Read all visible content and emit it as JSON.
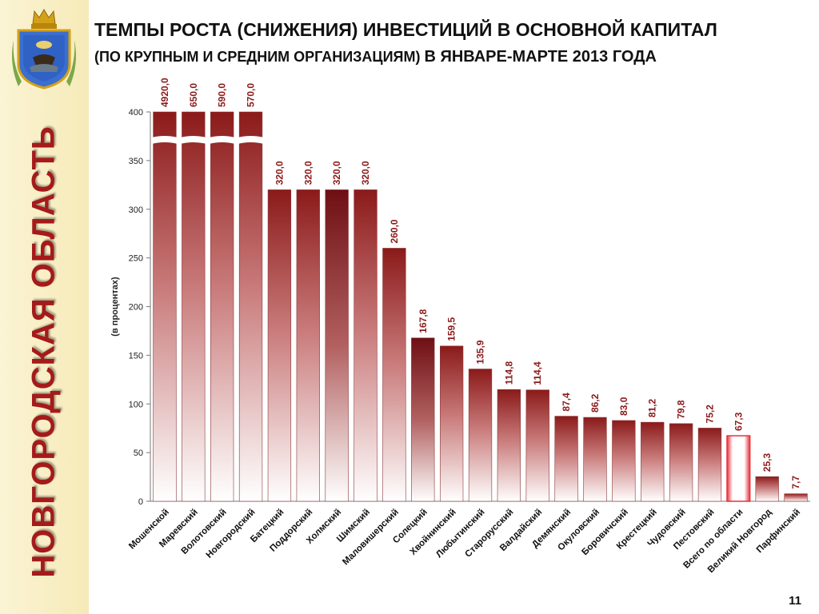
{
  "sidebar": {
    "region_title": "НОВГОРОДСКАЯ ОБЛАСТЬ",
    "emblem_icon": "coat-of-arms-icon"
  },
  "header": {
    "title_line1": "ТЕМПЫ РОСТА (СНИЖЕНИЯ) ИНВЕСТИЦИЙ В ОСНОВНОЙ КАПИТАЛ",
    "title_line2_part1": "(ПО КРУПНЫМ И СРЕДНИМ ОРГАНИЗАЦИЯМ)",
    "title_line2_part2": "В ЯНВАРЕ-МАРТЕ 2013 ГОДА"
  },
  "page_number": "11",
  "colors": {
    "bar_dark": "#8b1a1a",
    "bar_highlight": "#e8323c",
    "label_color": "#8b1a1a"
  },
  "chart_data": {
    "type": "bar",
    "ylabel": "(в процентах)",
    "ylim": [
      0,
      400
    ],
    "yticks": [
      0,
      50,
      100,
      150,
      200,
      250,
      300,
      350,
      400
    ],
    "axis_break": true,
    "grid": false,
    "categories": [
      "Мошенской",
      "Маревский",
      "Волотовский",
      "Новгородский",
      "Батецкий",
      "Поддорский",
      "Холмский",
      "Шимский",
      "Маловишерский",
      "Солецкий",
      "Хвойнинский",
      "Любытинский",
      "Старорусский",
      "Валдайский",
      "Демянский",
      "Окуловский",
      "Боровичский",
      "Крестецкий",
      "Чудовский",
      "Пестовский",
      "Всего по области",
      "Великий Новгород",
      "Парфинский"
    ],
    "values": [
      4920.0,
      650.0,
      590.0,
      570.0,
      320.0,
      320.0,
      320.0,
      320.0,
      260.0,
      167.8,
      159.5,
      135.9,
      114.8,
      114.4,
      87.4,
      86.2,
      83.0,
      81.2,
      79.8,
      75.2,
      67.3,
      25.3,
      7.7
    ],
    "value_labels": [
      "4920,0",
      "650,0",
      "590,0",
      "570,0",
      "320,0",
      "320,0",
      "320,0",
      "320,0",
      "260,0",
      "167,8",
      "159,5",
      "135,9",
      "114,8",
      "114,4",
      "87,4",
      "86,2",
      "83,0",
      "81,2",
      "79,8",
      "75,2",
      "67,3",
      "25,3",
      "7,7"
    ],
    "highlight_category": "Всего по области"
  }
}
